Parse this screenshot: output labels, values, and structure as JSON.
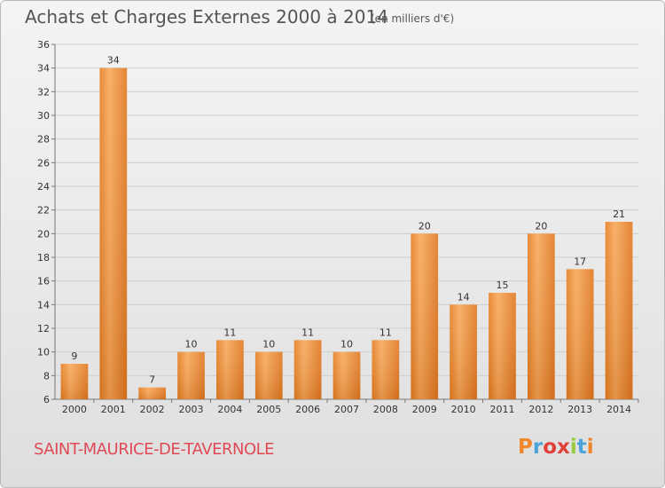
{
  "header": {
    "title": "Achats et Charges Externes 2000 à 2014",
    "subtitle": "(en milliers d'€)"
  },
  "footer": {
    "commune": "SAINT-MAURICE-DE-TAVERNOLE",
    "logo_text": "Proxiti",
    "logo_colors": [
      "#f0852a",
      "#4aa3d9",
      "#e2403a",
      "#e2403a",
      "#9bc93c",
      "#4aa3d9",
      "#f0852a"
    ]
  },
  "chart_data": {
    "type": "bar",
    "title": "Achats et Charges Externes 2000 à 2014",
    "subtitle": "(en milliers d'€)",
    "categories": [
      "2000",
      "2001",
      "2002",
      "2003",
      "2004",
      "2005",
      "2006",
      "2007",
      "2008",
      "2009",
      "2010",
      "2011",
      "2012",
      "2013",
      "2014"
    ],
    "values": [
      9,
      34,
      7,
      10,
      11,
      10,
      11,
      10,
      11,
      20,
      14,
      15,
      20,
      17,
      21
    ],
    "ylim": [
      6,
      36
    ],
    "yticks": [
      6,
      8,
      10,
      12,
      14,
      16,
      18,
      20,
      22,
      24,
      26,
      28,
      30,
      32,
      34,
      36
    ],
    "grid": true,
    "bar_color": "#f28e2b",
    "xlabel": "",
    "ylabel": ""
  }
}
